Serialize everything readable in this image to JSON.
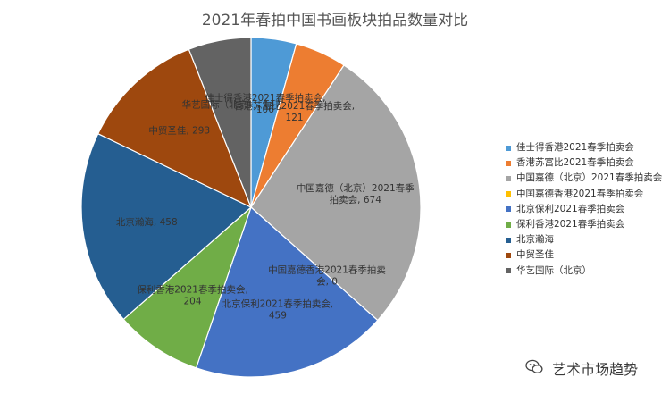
{
  "chart_data": {
    "type": "pie",
    "title": "2021年春拍中国书画板块拍品数量对比",
    "slices": [
      {
        "name": "佳士得香港2021春季拍卖会",
        "value": 106,
        "color": "#4E9AD6",
        "label": [
          "佳士得香港2021春季拍卖会,",
          "106"
        ]
      },
      {
        "name": "香港苏富比2021春季拍卖会",
        "value": 121,
        "color": "#ED7D31",
        "label": [
          "香港苏富比2021春季拍卖会,",
          "121"
        ]
      },
      {
        "name": "中国嘉德（北京）2021春季拍卖会",
        "value": 674,
        "color": "#A5A5A5",
        "label": [
          "中国嘉德（北京）2021春季",
          "拍卖会, 674"
        ]
      },
      {
        "name": "中国嘉德香港2021春季拍卖会",
        "value": 0,
        "color": "#FFC000",
        "label": [
          "中国嘉德香港2021春季拍卖",
          "会, 0"
        ]
      },
      {
        "name": "北京保利2021春季拍卖会",
        "value": 459,
        "color": "#4472C4",
        "label": [
          "北京保利2021春季拍卖会,",
          "459"
        ]
      },
      {
        "name": "保利香港2021春季拍卖会",
        "value": 204,
        "color": "#70AD47",
        "label": [
          "保利香港2021春季拍卖会,",
          "204"
        ]
      },
      {
        "name": "北京瀚海",
        "value": 458,
        "color": "#255E91",
        "label": [
          "北京瀚海, 458"
        ]
      },
      {
        "name": "中贸圣佳",
        "value": 293,
        "color": "#9E480E",
        "label": [
          "中贸圣佳, 293"
        ]
      },
      {
        "name": "华艺国际（北京）",
        "value": 147,
        "color": "#636363",
        "label": [
          "华艺国际（北京）, 147"
        ]
      }
    ],
    "legend_position": "right"
  },
  "watermark": {
    "icon": "wechat-icon",
    "text": "艺术市场趋势"
  }
}
